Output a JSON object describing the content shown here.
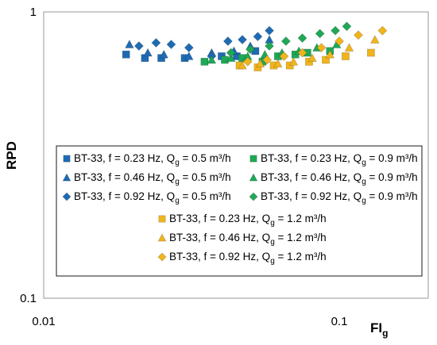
{
  "chart_data": {
    "type": "scatter",
    "xlabel": "FI",
    "xlabel_sub": "g",
    "ylabel": "RPD",
    "xscale": "log",
    "yscale": "log",
    "xlim": [
      0.01,
      0.2
    ],
    "ylim": [
      0.1,
      1
    ],
    "x_ticks": [
      0.01,
      0.1
    ],
    "x_tick_labels": [
      "0.01",
      "0.1"
    ],
    "y_ticks": [
      0.1,
      1
    ],
    "y_tick_labels": [
      "0.1",
      "1"
    ],
    "grid": false,
    "legend_placement": "inside-lower-center",
    "series": [
      {
        "name": "BT-33, f = 0.23 Hz, Q",
        "name_sub": "g",
        "name_tail": " = 0.5 m³/h",
        "marker": "square",
        "color": "#1f6bb3",
        "x": [
          0.019,
          0.022,
          0.025,
          0.03,
          0.04,
          0.045,
          0.052
        ],
        "y": [
          0.71,
          0.69,
          0.69,
          0.69,
          0.7,
          0.7,
          0.73
        ]
      },
      {
        "name": "BT-33, f = 0.46 Hz, Q",
        "name_sub": "g",
        "name_tail": " = 0.5 m³/h",
        "marker": "triangle",
        "color": "#1f6bb3",
        "x": [
          0.0195,
          0.0225,
          0.0255,
          0.031,
          0.037,
          0.044,
          0.05,
          0.058
        ],
        "y": [
          0.77,
          0.72,
          0.71,
          0.7,
          0.72,
          0.73,
          0.76,
          0.8
        ]
      },
      {
        "name": "BT-33, f = 0.92 Hz, Q",
        "name_sub": "g",
        "name_tail": " = 0.5 m³/h",
        "marker": "diamond",
        "color": "#1f6bb3",
        "x": [
          0.021,
          0.024,
          0.027,
          0.031,
          0.037,
          0.042,
          0.047,
          0.053,
          0.058
        ],
        "y": [
          0.76,
          0.78,
          0.77,
          0.75,
          0.7,
          0.79,
          0.8,
          0.82,
          0.86
        ]
      },
      {
        "name": "BT-33, f = 0.23 Hz, Q",
        "name_sub": "g",
        "name_tail": " = 0.9 m³/h",
        "marker": "square",
        "color": "#1fa856",
        "x": [
          0.035,
          0.041,
          0.047,
          0.055,
          0.062,
          0.071,
          0.078,
          0.093
        ],
        "y": [
          0.67,
          0.68,
          0.69,
          0.67,
          0.7,
          0.71,
          0.72,
          0.73
        ]
      },
      {
        "name": "BT-33, f = 0.46 Hz, Q",
        "name_sub": "g",
        "name_tail": " = 0.9 m³/h",
        "marker": "triangle",
        "color": "#1fa856",
        "x": [
          0.037,
          0.043,
          0.049,
          0.056,
          0.064,
          0.073,
          0.084,
          0.098
        ],
        "y": [
          0.68,
          0.69,
          0.7,
          0.71,
          0.72,
          0.73,
          0.75,
          0.77
        ]
      },
      {
        "name": "BT-33, f = 0.92 Hz, Q",
        "name_sub": "g",
        "name_tail": " = 0.9 m³/h",
        "marker": "diamond",
        "color": "#1fa856",
        "x": [
          0.043,
          0.05,
          0.058,
          0.066,
          0.075,
          0.086,
          0.097,
          0.106
        ],
        "y": [
          0.72,
          0.74,
          0.76,
          0.79,
          0.81,
          0.84,
          0.86,
          0.89
        ]
      },
      {
        "name": "BT-33, f = 0.23 Hz, Q",
        "name_sub": "g",
        "name_tail": " = 1.2 m³/h",
        "marker": "square",
        "color": "#f0b41c",
        "x": [
          0.046,
          0.053,
          0.06,
          0.068,
          0.079,
          0.09,
          0.105,
          0.128
        ],
        "y": [
          0.65,
          0.64,
          0.65,
          0.65,
          0.67,
          0.68,
          0.7,
          0.72
        ]
      },
      {
        "name": "BT-33, f = 0.46 Hz, Q",
        "name_sub": "g",
        "name_tail": " = 1.2 m³/h",
        "marker": "triangle",
        "color": "#f0b41c",
        "x": [
          0.047,
          0.054,
          0.062,
          0.07,
          0.081,
          0.093,
          0.108,
          0.132
        ],
        "y": [
          0.65,
          0.66,
          0.66,
          0.67,
          0.69,
          0.71,
          0.75,
          0.8
        ]
      },
      {
        "name": "BT-33, f = 0.92 Hz, Q",
        "name_sub": "g",
        "name_tail": " = 1.2 m³/h",
        "marker": "diamond",
        "color": "#f0b41c",
        "x": [
          0.049,
          0.057,
          0.065,
          0.075,
          0.087,
          0.1,
          0.116,
          0.14
        ],
        "y": [
          0.67,
          0.68,
          0.7,
          0.72,
          0.75,
          0.79,
          0.83,
          0.86
        ]
      }
    ]
  }
}
